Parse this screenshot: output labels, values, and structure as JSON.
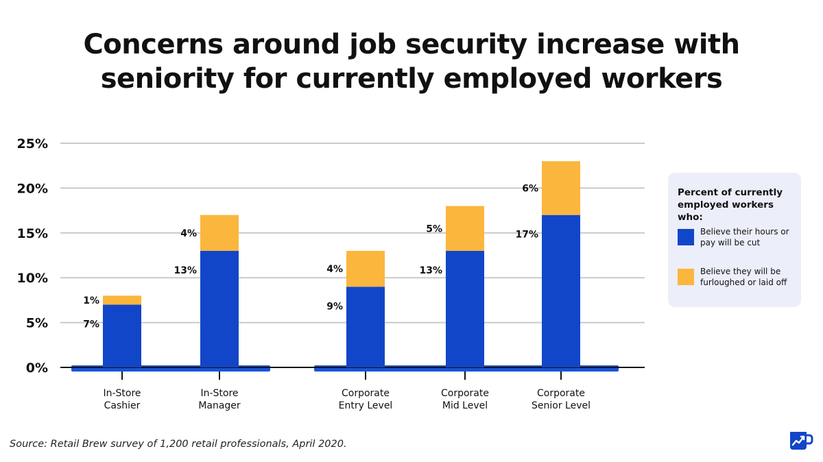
{
  "title_lines": [
    "Concerns around job security increase with",
    "seniority for currently employed workers"
  ],
  "chart_data": {
    "type": "bar",
    "stacked": true,
    "categories": [
      [
        "In-Store",
        "Cashier"
      ],
      [
        "In-Store",
        "Manager"
      ],
      [
        "Corporate",
        "Entry Level"
      ],
      [
        "Corporate",
        "Mid Level"
      ],
      [
        "Corporate",
        "Senior Level"
      ]
    ],
    "series": [
      {
        "name": "Believe their hours or pay will be cut",
        "values": [
          7,
          13,
          9,
          13,
          17
        ],
        "color": "#1246c9"
      },
      {
        "name": "Believe they will be furloughed or laid off",
        "values": [
          1,
          4,
          4,
          5,
          6
        ],
        "color": "#fbb63e"
      }
    ],
    "data_labels": [
      [
        "7%",
        "13%",
        "9%",
        "13%",
        "17%"
      ],
      [
        "1%",
        "4%",
        "4%",
        "5%",
        "6%"
      ]
    ],
    "y_ticks": [
      "0%",
      "5%",
      "10%",
      "15%",
      "20%",
      "25%"
    ],
    "ylim": [
      0,
      25
    ],
    "grid": true,
    "legend_position": "right"
  },
  "legend": {
    "title": "Percent of currently employed workers who:",
    "items": [
      {
        "label": "Believe their hours or pay will be cut",
        "color": "#1246c9"
      },
      {
        "label": "Believe they will be furloughed or laid off",
        "color": "#fbb63e"
      }
    ]
  },
  "source": "Source: Retail Brew survey of 1,200 retail professionals, April 2020.",
  "brand_icon": "coffee-mug-chart-icon"
}
